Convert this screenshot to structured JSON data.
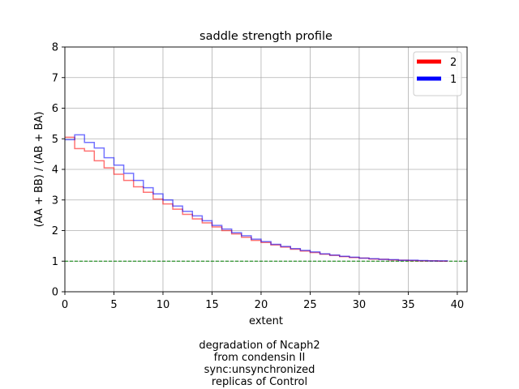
{
  "chart_data": {
    "type": "line",
    "title": "saddle strength profile",
    "xlabel": "extent",
    "ylabel": "(AA + BB) / (AB + BA)",
    "xlim": [
      0,
      41
    ],
    "ylim": [
      0,
      8
    ],
    "xticks": [
      0,
      5,
      10,
      15,
      20,
      25,
      30,
      35,
      40
    ],
    "yticks": [
      0,
      1,
      2,
      3,
      4,
      5,
      6,
      7,
      8
    ],
    "grid": true,
    "legend_position": "top-right",
    "reference_line": {
      "y": 1,
      "style": "dashed",
      "color": "#008000"
    },
    "step": "post",
    "series": [
      {
        "name": "2",
        "color": "#ff0000",
        "x": [
          0,
          1,
          2,
          3,
          4,
          5,
          6,
          7,
          8,
          9,
          10,
          11,
          12,
          13,
          14,
          15,
          16,
          17,
          18,
          19,
          20,
          21,
          22,
          23,
          24,
          25,
          26,
          27,
          28,
          29,
          30,
          31,
          32,
          33,
          34,
          35,
          36,
          37,
          38,
          39
        ],
        "values": [
          5.05,
          4.68,
          4.6,
          4.28,
          4.05,
          3.84,
          3.64,
          3.43,
          3.25,
          3.03,
          2.87,
          2.7,
          2.53,
          2.38,
          2.25,
          2.12,
          2.0,
          1.89,
          1.78,
          1.68,
          1.61,
          1.53,
          1.46,
          1.39,
          1.33,
          1.28,
          1.23,
          1.19,
          1.15,
          1.12,
          1.1,
          1.07,
          1.06,
          1.04,
          1.03,
          1.02,
          1.01,
          1.01,
          1.0,
          1.0
        ]
      },
      {
        "name": "1",
        "color": "#0000ff",
        "x": [
          0,
          1,
          2,
          3,
          4,
          5,
          6,
          7,
          8,
          9,
          10,
          11,
          12,
          13,
          14,
          15,
          16,
          17,
          18,
          19,
          20,
          21,
          22,
          23,
          24,
          25,
          26,
          27,
          28,
          29,
          30,
          31,
          32,
          33,
          34,
          35,
          36,
          37,
          38,
          39
        ],
        "values": [
          4.97,
          5.13,
          4.88,
          4.7,
          4.38,
          4.14,
          3.87,
          3.64,
          3.4,
          3.2,
          3.0,
          2.8,
          2.63,
          2.48,
          2.32,
          2.17,
          2.05,
          1.93,
          1.83,
          1.72,
          1.64,
          1.55,
          1.48,
          1.41,
          1.35,
          1.3,
          1.24,
          1.2,
          1.16,
          1.13,
          1.1,
          1.08,
          1.06,
          1.05,
          1.03,
          1.03,
          1.02,
          1.01,
          1.01,
          1.0
        ]
      }
    ]
  },
  "caption": {
    "line1": "degradation of Ncaph2",
    "line2": "from condensin II",
    "line3": "sync:unsynchronized",
    "line4": "replicas of Control"
  }
}
